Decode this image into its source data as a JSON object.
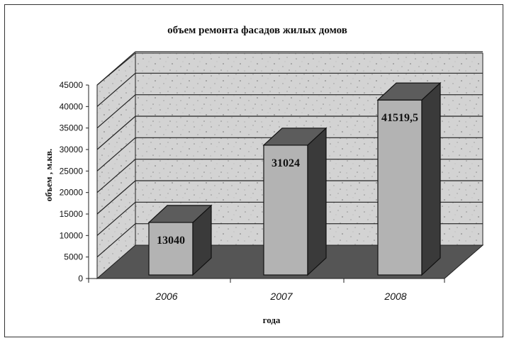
{
  "chart_data": {
    "type": "bar",
    "title": "объем ремонта фасадов жилых домов",
    "xlabel": "года",
    "ylabel": "объем , м.кв.",
    "categories": [
      "2006",
      "2007",
      "2008"
    ],
    "values": [
      13040,
      31024,
      41519.5
    ],
    "data_labels": [
      "13040",
      "31024",
      "41519,5"
    ],
    "ylim": [
      0,
      45000
    ],
    "yticks": [
      "0",
      "5000",
      "10000",
      "15000",
      "20000",
      "25000",
      "30000",
      "35000",
      "40000",
      "45000"
    ],
    "grid": true,
    "legend": "none",
    "colors": {
      "bar_front": "#b3b3b3",
      "bar_side": "#3a3a3a",
      "bar_top": "#5c5c5c",
      "wall": "#d2d2d2",
      "floor": "#555555"
    }
  }
}
